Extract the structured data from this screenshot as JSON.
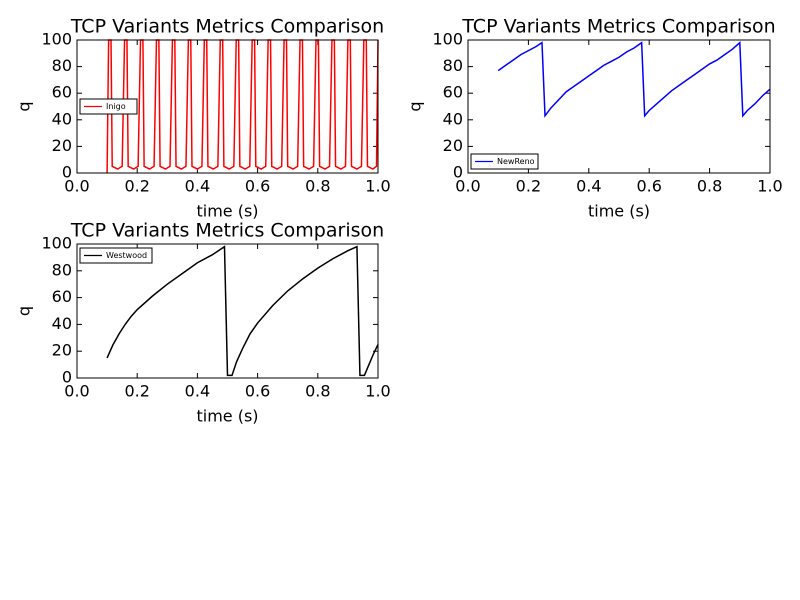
{
  "chart_data": [
    {
      "type": "line",
      "title": "TCP Variants Metrics Comparison",
      "xlabel": "time (s)",
      "ylabel": "q",
      "x": [
        0.1,
        0.105,
        0.113,
        0.117,
        0.135,
        0.15,
        0.158,
        0.166,
        0.17,
        0.188,
        0.203,
        0.211,
        0.219,
        0.223,
        0.241,
        0.256,
        0.264,
        0.272,
        0.276,
        0.294,
        0.309,
        0.317,
        0.325,
        0.329,
        0.347,
        0.362,
        0.37,
        0.378,
        0.382,
        0.4,
        0.415,
        0.423,
        0.431,
        0.435,
        0.453,
        0.468,
        0.476,
        0.484,
        0.488,
        0.506,
        0.521,
        0.529,
        0.537,
        0.541,
        0.559,
        0.574,
        0.582,
        0.59,
        0.594,
        0.612,
        0.627,
        0.635,
        0.643,
        0.647,
        0.665,
        0.68,
        0.688,
        0.696,
        0.7,
        0.718,
        0.733,
        0.741,
        0.749,
        0.753,
        0.771,
        0.786,
        0.794,
        0.802,
        0.806,
        0.824,
        0.839,
        0.847,
        0.855,
        0.859,
        0.877,
        0.892,
        0.9,
        0.908,
        0.912,
        0.93,
        0.945,
        0.953,
        0.961,
        0.965,
        0.983,
        0.995,
        1.0
      ],
      "series": [
        {
          "name": "Inigo",
          "color": "#ff0000",
          "values": [
            0,
            100,
            100,
            5,
            3,
            5,
            100,
            100,
            5,
            3,
            5,
            100,
            100,
            5,
            3,
            5,
            100,
            100,
            5,
            3,
            5,
            100,
            100,
            5,
            3,
            5,
            100,
            100,
            5,
            3,
            5,
            100,
            100,
            5,
            3,
            5,
            100,
            100,
            5,
            3,
            5,
            100,
            100,
            5,
            3,
            5,
            100,
            100,
            5,
            3,
            5,
            100,
            100,
            5,
            3,
            5,
            100,
            100,
            5,
            3,
            5,
            100,
            100,
            5,
            3,
            5,
            100,
            100,
            5,
            3,
            5,
            100,
            100,
            5,
            3,
            5,
            100,
            100,
            5,
            3,
            5,
            100,
            100,
            5,
            3,
            5,
            100
          ]
        }
      ],
      "xlim": [
        0,
        1
      ],
      "ylim": [
        0,
        100
      ],
      "xticks": [
        {
          "value": 0,
          "label": "0.0"
        },
        0.2,
        0.4,
        0.6,
        0.8,
        {
          "value": 1,
          "label": "1.0"
        }
      ],
      "yticks": [
        0,
        20,
        40,
        60,
        80,
        100
      ],
      "legend": "center left"
    },
    {
      "type": "line",
      "title": "TCP Variants Metrics Comparison",
      "xlabel": "time (s)",
      "ylabel": "q",
      "x": [
        0.1,
        0.125,
        0.15,
        0.175,
        0.2,
        0.225,
        0.245,
        0.255,
        0.275,
        0.3,
        0.325,
        0.35,
        0.375,
        0.4,
        0.425,
        0.45,
        0.475,
        0.5,
        0.525,
        0.55,
        0.575,
        0.585,
        0.6,
        0.625,
        0.65,
        0.675,
        0.7,
        0.725,
        0.75,
        0.775,
        0.8,
        0.825,
        0.85,
        0.875,
        0.9,
        0.91,
        0.925,
        0.95,
        0.975,
        1.0
      ],
      "series": [
        {
          "name": "NewReno",
          "color": "#0000ff",
          "values": [
            77,
            81,
            85,
            89,
            92,
            95,
            98,
            43,
            49,
            55,
            61,
            65,
            69,
            73,
            77,
            81,
            84,
            87,
            91,
            94,
            98,
            43,
            47,
            52,
            57,
            62,
            66,
            70,
            74,
            78,
            82,
            85,
            89,
            93,
            98,
            43,
            47,
            52,
            58,
            63
          ]
        }
      ],
      "xlim": [
        0,
        1
      ],
      "ylim": [
        0,
        100
      ],
      "xticks": [
        {
          "value": 0,
          "label": "0.0"
        },
        0.2,
        0.4,
        0.6,
        0.8,
        {
          "value": 1,
          "label": "1.0"
        }
      ],
      "yticks": [
        0,
        20,
        40,
        60,
        80,
        100
      ],
      "legend": "lower left"
    },
    {
      "type": "line",
      "title": "TCP Variants Metrics Comparison",
      "xlabel": "time (s)",
      "ylabel": "q",
      "x": [
        0.1,
        0.12,
        0.14,
        0.16,
        0.18,
        0.2,
        0.25,
        0.3,
        0.35,
        0.4,
        0.45,
        0.49,
        0.5,
        0.515,
        0.53,
        0.55,
        0.575,
        0.6,
        0.65,
        0.7,
        0.75,
        0.8,
        0.85,
        0.9,
        0.93,
        0.94,
        0.955,
        0.97,
        0.985,
        1.0
      ],
      "series": [
        {
          "name": "Westwood",
          "color": "#000000",
          "values": [
            15,
            25,
            33,
            40,
            46,
            51,
            61,
            70,
            78,
            86,
            92,
            98,
            2,
            2,
            12,
            22,
            33,
            41,
            54,
            65,
            74,
            82,
            89,
            95,
            98,
            2,
            2,
            10,
            18,
            25
          ]
        }
      ],
      "xlim": [
        0,
        1
      ],
      "ylim": [
        0,
        100
      ],
      "xticks": [
        {
          "value": 0,
          "label": "0.0"
        },
        0.2,
        0.4,
        0.6,
        0.8,
        {
          "value": 1,
          "label": "1.0"
        }
      ],
      "yticks": [
        0,
        20,
        40,
        60,
        80,
        100
      ],
      "legend": "upper left"
    }
  ]
}
